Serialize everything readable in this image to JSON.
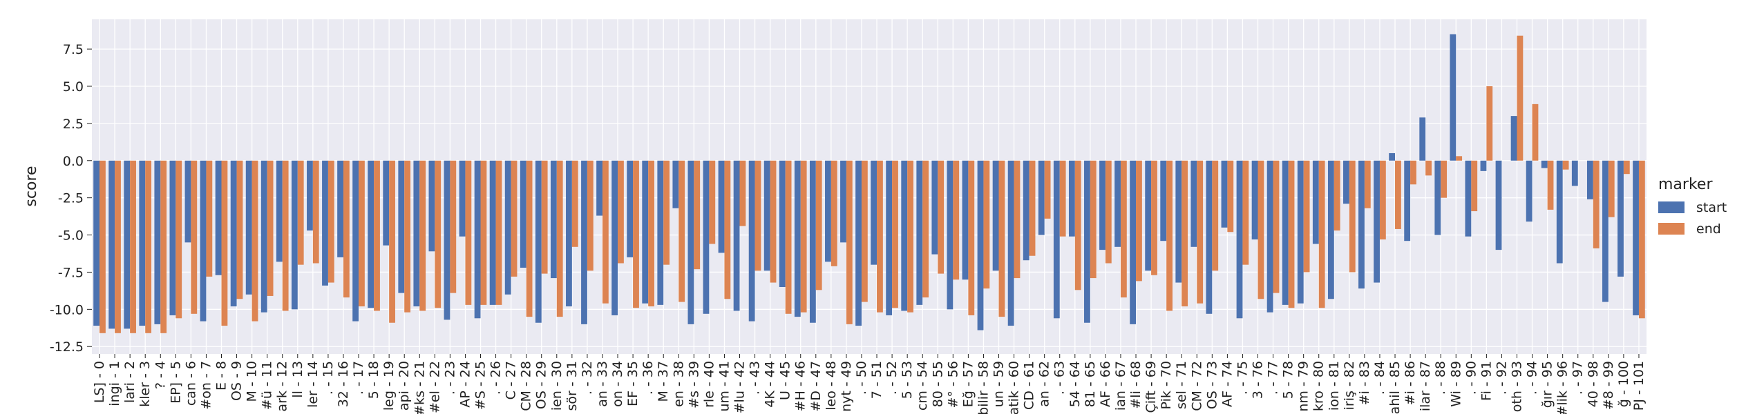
{
  "chart_data": {
    "type": "bar",
    "ylabel": "score",
    "xlabel": "",
    "ylim": [
      -13.0,
      9.5
    ],
    "yticks": [
      "7.5",
      "5.0",
      "2.5",
      "0.0",
      "-2.5",
      "-5.0",
      "-7.5",
      "-10.0",
      "-12.5"
    ],
    "grid": true,
    "legend": {
      "title": "marker",
      "placement": "right"
    },
    "categories": [
      "LS] - 0",
      "ingi - 1",
      "lari - 2",
      "kler - 3",
      "? - 4",
      "EP] - 5",
      "can - 6",
      "#on - 7",
      "E - 8",
      "OS - 9",
      "M - 10",
      "#ü - 11",
      "ark - 12",
      "ll - 13",
      "ler - 14",
      ". - 15",
      "32 - 16",
      ". - 17",
      "5 - 18",
      "leg - 19",
      "api - 20",
      "#ks - 21",
      "#el - 22",
      ". - 23",
      "AP - 24",
      "#S - 25",
      ". - 26",
      "C - 27",
      "CM - 28",
      "OS - 29",
      "ien - 30",
      "sör - 31",
      ". - 32",
      "an - 33",
      "on - 34",
      "EF - 35",
      ". - 36",
      "M - 37",
      "en - 38",
      "#s - 39",
      "rle - 40",
      "um - 41",
      "#lu - 42",
      ". - 43",
      "4K - 44",
      "U - 45",
      "#H - 46",
      "#D - 47",
      "leo - 48",
      "nyt - 49",
      ". - 50",
      "7 - 51",
      ". - 52",
      "5 - 53",
      "cm - 54",
      "80 - 55",
      "#° - 56",
      "Eğ - 57",
      "bilir - 58",
      "un - 59",
      "atik - 60",
      "CD - 61",
      "an - 62",
      ". - 63",
      "54 - 64",
      "81 - 65",
      "AF - 66",
      "ian - 67",
      "#li - 68",
      "Çift - 69",
      "Pik - 70",
      "sel - 71",
      "CM - 72",
      "OS - 73",
      "AF - 74",
      ". - 75",
      "3 - 76",
      ". - 77",
      "5 - 78",
      "nm - 79",
      "kro - 80",
      "ion - 81",
      "iriş - 82",
      "#i - 83",
      ". - 84",
      "ahil - 85",
      "#i - 86",
      "ilar - 87",
      ". - 88",
      "Wi - 89",
      ". - 90",
      "Fi - 91",
      ". - 92",
      "oth - 93",
      ". - 94",
      "ğır - 95",
      "#lik - 96",
      ". - 97",
      "40 - 98",
      "#8 - 99",
      "ğ - 100",
      "PJ - 101"
    ],
    "series": [
      {
        "name": "start",
        "color": "#4c72b0",
        "values": [
          -11.1,
          -11.3,
          -11.3,
          -11.1,
          -11.0,
          -10.4,
          -5.5,
          -10.8,
          -7.7,
          -9.8,
          -9.0,
          -10.2,
          -6.8,
          -10.0,
          -4.7,
          -8.4,
          -6.5,
          -10.8,
          -9.9,
          -5.7,
          -8.9,
          -9.8,
          -6.1,
          -10.7,
          -5.1,
          -10.6,
          -9.7,
          -9.0,
          -7.2,
          -10.9,
          -7.9,
          -9.8,
          -11.0,
          -3.7,
          -10.4,
          -6.5,
          -9.6,
          -9.7,
          -3.2,
          -11.0,
          -10.3,
          -6.2,
          -10.1,
          -10.8,
          -7.4,
          -8.5,
          -10.5,
          -10.9,
          -6.8,
          -5.5,
          -11.1,
          -7.0,
          -10.4,
          -10.1,
          -9.7,
          -6.3,
          -10.0,
          -8.0,
          -11.4,
          -7.4,
          -11.1,
          -6.7,
          -5.0,
          -10.6,
          -5.1,
          -10.9,
          -6.0,
          -5.8,
          -11.0,
          -7.4,
          -5.4,
          -8.2,
          -5.8,
          -10.3,
          -4.5,
          -10.6,
          -5.3,
          -10.2,
          -9.7,
          -9.6,
          -5.6,
          -9.3,
          -2.9,
          -8.6,
          -8.2,
          0.5,
          -5.4,
          2.9,
          -5.0,
          8.5,
          -5.1,
          -0.7,
          -6.0,
          3.0,
          -4.1,
          -0.5,
          -6.9,
          -1.7,
          -2.6,
          -9.5,
          -7.8,
          -10.4
        ]
      },
      {
        "name": "end",
        "color": "#dd8452",
        "values": [
          -11.6,
          -11.6,
          -11.6,
          -11.6,
          -11.6,
          -10.6,
          -10.3,
          -7.8,
          -11.1,
          -9.3,
          -10.8,
          -9.1,
          -10.1,
          -7.0,
          -6.9,
          -8.2,
          -9.2,
          -9.8,
          -10.1,
          -10.9,
          -10.2,
          -10.1,
          -9.9,
          -8.9,
          -9.7,
          -9.7,
          -9.7,
          -7.8,
          -10.5,
          -7.6,
          -10.5,
          -5.8,
          -7.4,
          -9.6,
          -6.9,
          -9.9,
          -9.8,
          -7.0,
          -9.5,
          -7.3,
          -5.6,
          -9.3,
          -4.4,
          -7.4,
          -8.2,
          -10.3,
          -10.2,
          -8.7,
          -7.1,
          -11.0,
          -9.5,
          -10.2,
          -9.9,
          -10.2,
          -9.2,
          -7.6,
          -8.0,
          -10.4,
          -8.6,
          -10.5,
          -7.9,
          -6.4,
          -3.9,
          -5.1,
          -8.7,
          -7.9,
          -6.9,
          -9.2,
          -8.1,
          -7.7,
          -10.1,
          -9.8,
          -9.6,
          -7.4,
          -4.8,
          -7.0,
          -9.3,
          -8.9,
          -9.9,
          -7.5,
          -9.9,
          -4.7,
          -7.5,
          -3.2,
          -5.3,
          -4.6,
          -1.6,
          -1.0,
          -2.5,
          0.3,
          -3.4,
          5.0,
          0.0,
          8.4,
          3.8,
          -3.3,
          -0.6,
          0.0,
          -5.9,
          -3.8,
          -0.9,
          -10.6
        ]
      }
    ]
  }
}
